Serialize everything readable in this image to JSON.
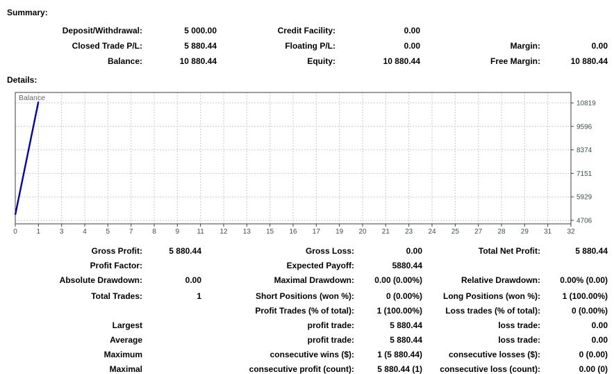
{
  "summary": {
    "heading": "Summary:",
    "rows": [
      [
        "Deposit/Withdrawal:",
        "5 000.00",
        "Credit Facility:",
        "0.00",
        "",
        ""
      ],
      [
        "Closed Trade P/L:",
        "5 880.44",
        "Floating P/L:",
        "0.00",
        "Margin:",
        "0.00"
      ],
      [
        "Balance:",
        "10 880.44",
        "Equity:",
        "10 880.44",
        "Free Margin:",
        "10 880.44"
      ]
    ]
  },
  "details": {
    "heading": "Details:",
    "blockA": [
      [
        "Gross Profit:",
        "5 880.44",
        "Gross Loss:",
        "0.00",
        "Total Net Profit:",
        "5 880.44"
      ],
      [
        "Profit Factor:",
        "",
        "Expected Payoff:",
        "5880.44",
        "",
        ""
      ],
      [
        "Absolute Drawdown:",
        "0.00",
        "Maximal Drawdown:",
        "0.00 (0.00%)",
        "Relative Drawdown:",
        "0.00% (0.00)"
      ]
    ],
    "blockB": [
      [
        "Total Trades:",
        "1",
        "Short Positions (won %):",
        "0 (0.00%)",
        "Long Positions (won %):",
        "1 (100.00%)"
      ],
      [
        "",
        "",
        "Profit Trades (% of total):",
        "1 (100.00%)",
        "Loss trades (% of total):",
        "0 (0.00%)"
      ],
      [
        "Largest",
        "",
        "profit trade:",
        "5 880.44",
        "loss trade:",
        "0.00"
      ],
      [
        "Average",
        "",
        "profit trade:",
        "5 880.44",
        "loss trade:",
        "0.00"
      ],
      [
        "Maximum",
        "",
        "consecutive wins ($):",
        "1 (5 880.44)",
        "consecutive losses ($):",
        "0 (0.00)"
      ],
      [
        "Maximal",
        "",
        "consecutive profit (count):",
        "5 880.44 (1)",
        "consecutive loss (count):",
        "0.00 (0)"
      ]
    ]
  },
  "chart_data": {
    "type": "line",
    "title": "Balance",
    "series": [
      {
        "name": "Balance",
        "points": [
          {
            "x": 0,
            "y": 5000
          },
          {
            "x": 1,
            "y": 10880.44
          }
        ]
      }
    ],
    "x_ticks": [
      "0",
      "1",
      "3",
      "4",
      "5",
      "7",
      "8",
      "9",
      "11",
      "12",
      "13",
      "15",
      "16",
      "17",
      "19",
      "20",
      "21",
      "23",
      "24",
      "25",
      "27",
      "28",
      "29",
      "31",
      "32"
    ],
    "y_ticks": [
      4706,
      5929,
      7151,
      8374,
      9596,
      10819
    ],
    "ylim": [
      4584,
      10941
    ],
    "grid": "dashed",
    "legend_position": "top-left-inside",
    "colors": {
      "line": "#0000b4",
      "grid": "#c9c9c9",
      "border": "#3d3d3d",
      "axis_text": "#3c5050",
      "series_label_text": "#666666"
    }
  }
}
